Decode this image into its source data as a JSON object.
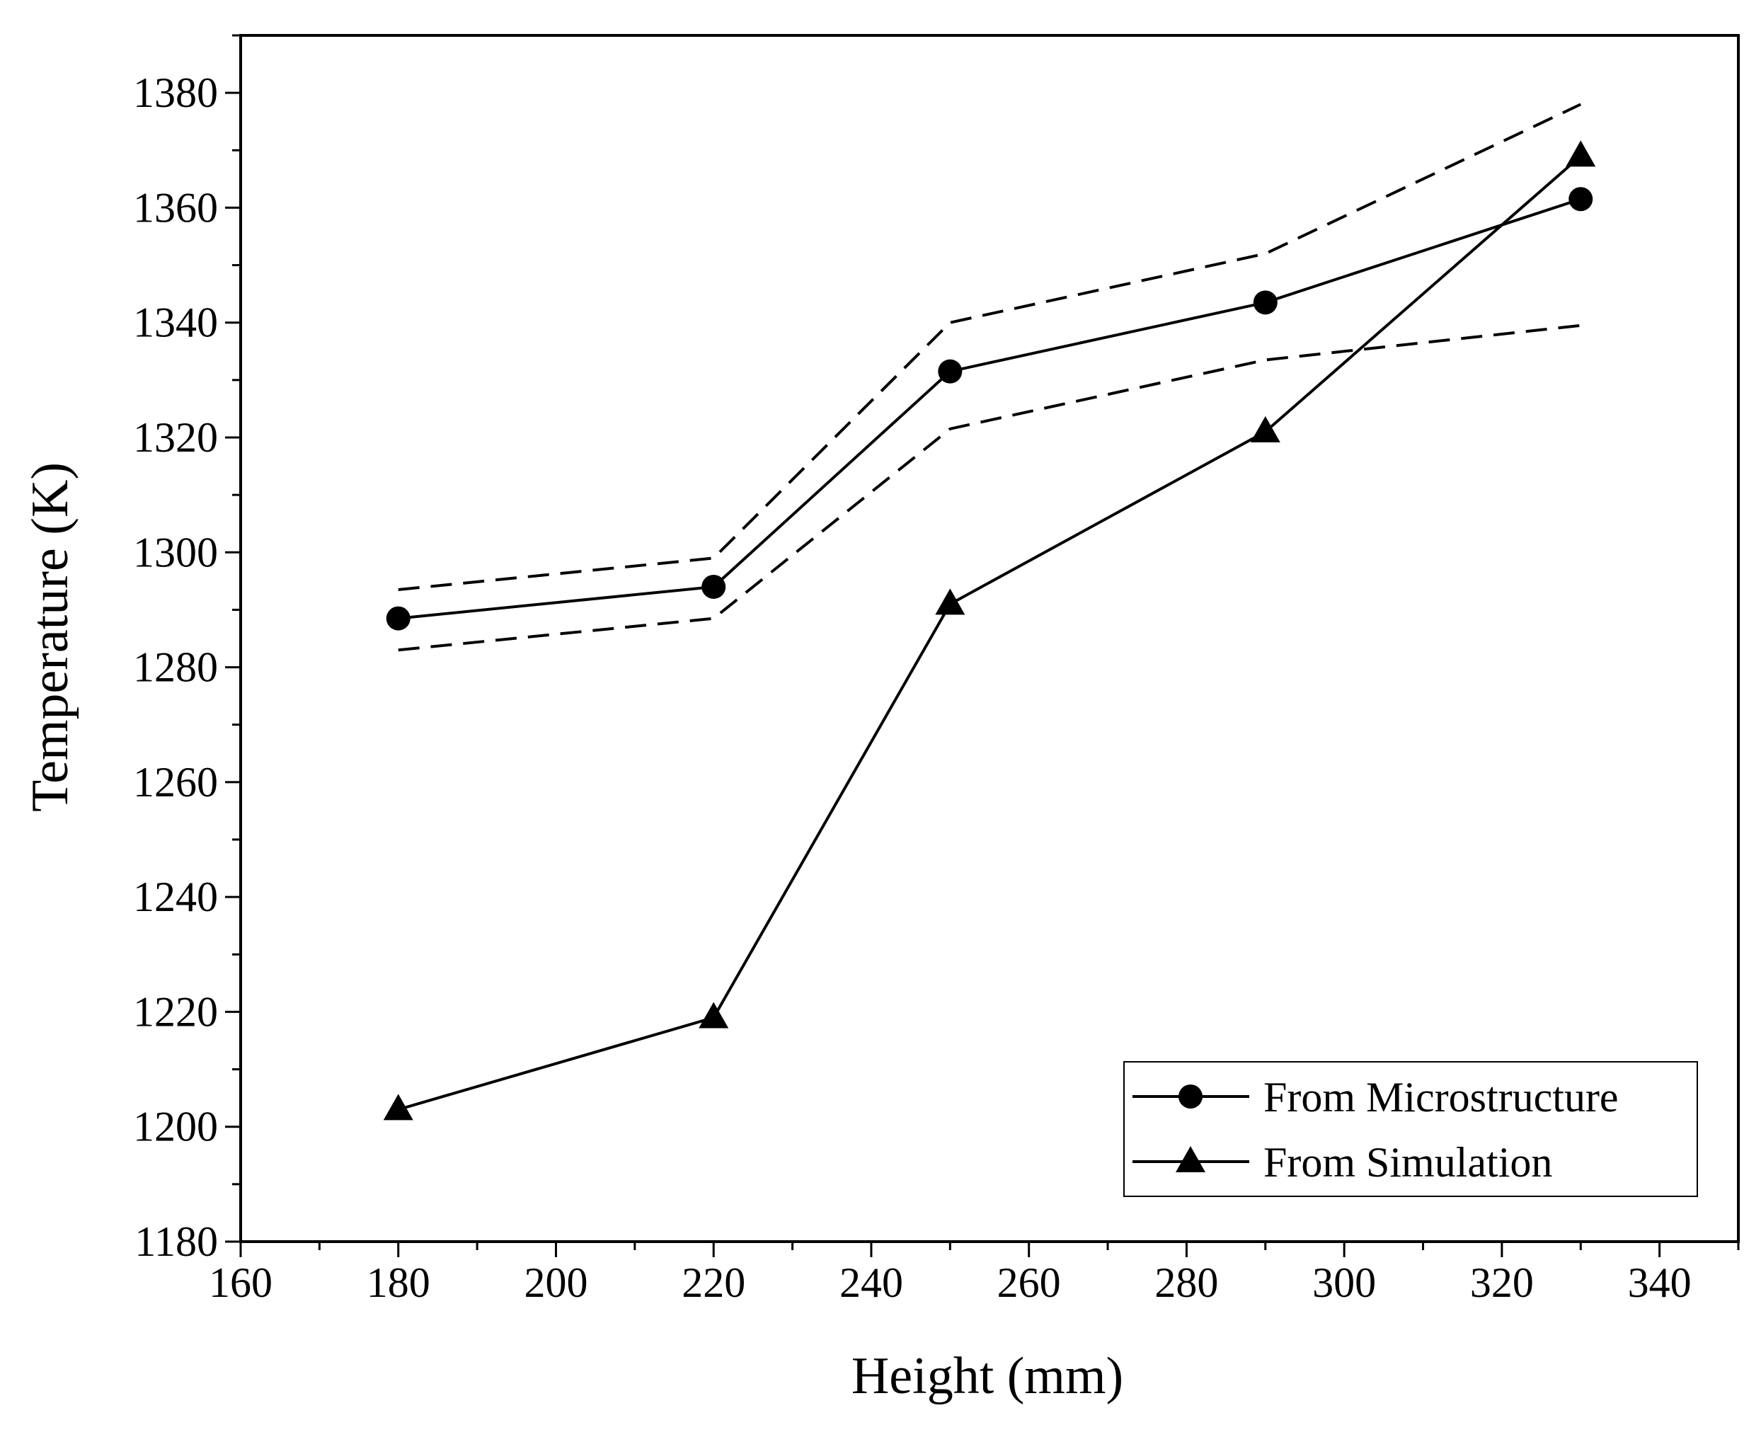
{
  "chart_data": {
    "type": "line",
    "title": "",
    "xlabel": "Height (mm)",
    "ylabel": "Temperature (K)",
    "xlim": [
      160,
      350
    ],
    "ylim": [
      1180,
      1390
    ],
    "xticks": [
      160,
      180,
      200,
      220,
      240,
      260,
      280,
      300,
      320,
      340
    ],
    "yticks": [
      1180,
      1200,
      1220,
      1240,
      1260,
      1280,
      1300,
      1320,
      1340,
      1360,
      1380
    ],
    "grid": false,
    "legend_position": "bottom-right",
    "series": [
      {
        "name": "From Microstructure",
        "marker": "circle",
        "line": "solid",
        "x": [
          180,
          220,
          250,
          290,
          330
        ],
        "y": [
          1288.5,
          1294,
          1331.5,
          1343.5,
          1361.5
        ]
      },
      {
        "name": "From Simulation",
        "marker": "triangle",
        "line": "solid",
        "x": [
          180,
          220,
          250,
          290,
          330
        ],
        "y": [
          1203,
          1219,
          1291,
          1321,
          1369
        ]
      }
    ],
    "bounds": [
      {
        "name": "upper-bound",
        "line": "dashed",
        "x": [
          180,
          220,
          250,
          290,
          330
        ],
        "y": [
          1293.5,
          1299,
          1340,
          1352,
          1378
        ]
      },
      {
        "name": "lower-bound",
        "line": "dashed",
        "x": [
          180,
          220,
          250,
          290,
          330
        ],
        "y": [
          1283,
          1288.5,
          1321.5,
          1333.5,
          1339.5
        ]
      }
    ]
  }
}
